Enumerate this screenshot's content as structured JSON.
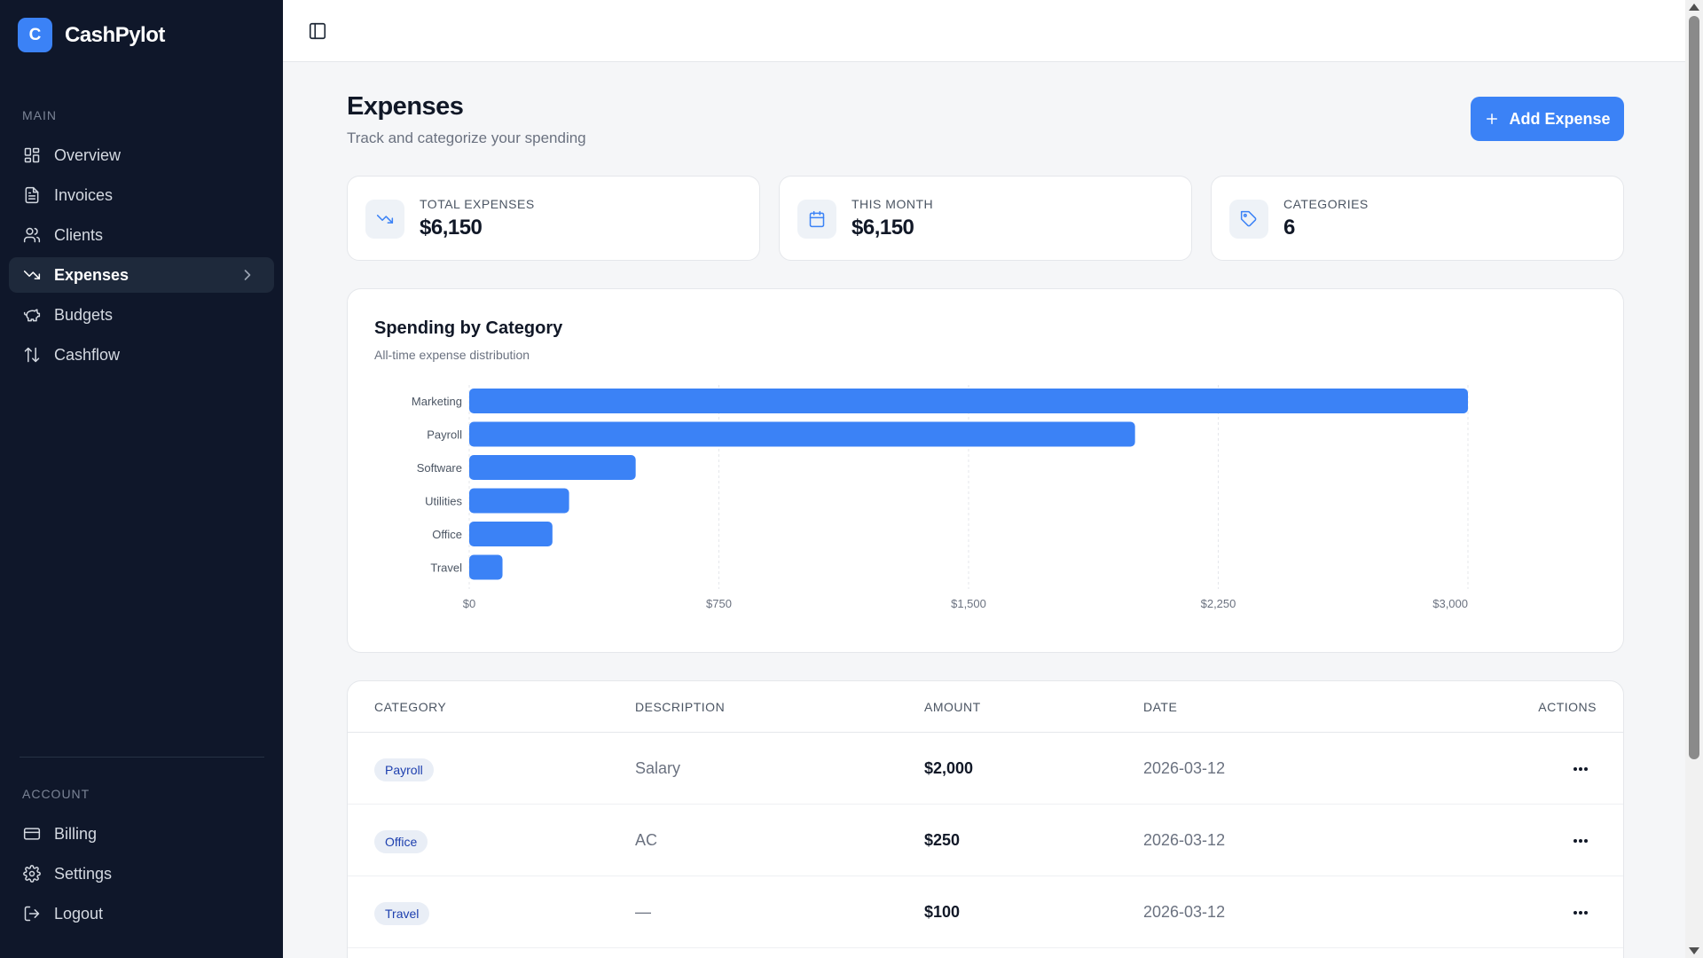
{
  "app": {
    "name": "CashPylot",
    "logo_letter": "C"
  },
  "sidebar": {
    "main_label": "MAIN",
    "main_items": [
      {
        "label": "Overview",
        "icon": "grid-icon"
      },
      {
        "label": "Invoices",
        "icon": "document-icon"
      },
      {
        "label": "Clients",
        "icon": "users-icon"
      },
      {
        "label": "Expenses",
        "icon": "trending-down-icon",
        "active": true
      },
      {
        "label": "Budgets",
        "icon": "piggy-bank-icon"
      },
      {
        "label": "Cashflow",
        "icon": "arrows-up-down-icon"
      }
    ],
    "account_label": "ACCOUNT",
    "account_items": [
      {
        "label": "Billing",
        "icon": "credit-card-icon"
      },
      {
        "label": "Settings",
        "icon": "gear-icon"
      },
      {
        "label": "Logout",
        "icon": "logout-icon"
      }
    ]
  },
  "header": {
    "title": "Expenses",
    "subtitle": "Track and categorize your spending",
    "add_button": "Add Expense"
  },
  "stats": [
    {
      "label": "TOTAL EXPENSES",
      "value": "$6,150",
      "icon": "trending-down-icon"
    },
    {
      "label": "THIS MONTH",
      "value": "$6,150",
      "icon": "calendar-icon"
    },
    {
      "label": "CATEGORIES",
      "value": "6",
      "icon": "tag-icon"
    }
  ],
  "chart_card": {
    "title": "Spending by Category",
    "subtitle": "All-time expense distribution"
  },
  "chart_data": {
    "type": "bar",
    "orientation": "horizontal",
    "categories": [
      "Marketing",
      "Payroll",
      "Software",
      "Utilities",
      "Office",
      "Travel"
    ],
    "values": [
      3000,
      2000,
      500,
      300,
      250,
      100
    ],
    "xlim": [
      0,
      3000
    ],
    "xticks": [
      "$0",
      "$750",
      "$1,500",
      "$2,250",
      "$3,000"
    ],
    "xtick_values": [
      0,
      750,
      1500,
      2250,
      3000
    ],
    "grid": "vertical-dashed",
    "bar_color": "#3b82f6"
  },
  "table": {
    "headers": [
      "CATEGORY",
      "DESCRIPTION",
      "AMOUNT",
      "DATE",
      "ACTIONS"
    ],
    "rows": [
      {
        "category": "Payroll",
        "description": "Salary",
        "amount": "$2,000",
        "date": "2026-03-12"
      },
      {
        "category": "Office",
        "description": "AC",
        "amount": "$250",
        "date": "2026-03-12"
      },
      {
        "category": "Travel",
        "description": "—",
        "amount": "$100",
        "date": "2026-03-12"
      }
    ]
  },
  "colors": {
    "accent": "#3b82f6",
    "sidebar_bg": "#0f172a"
  }
}
